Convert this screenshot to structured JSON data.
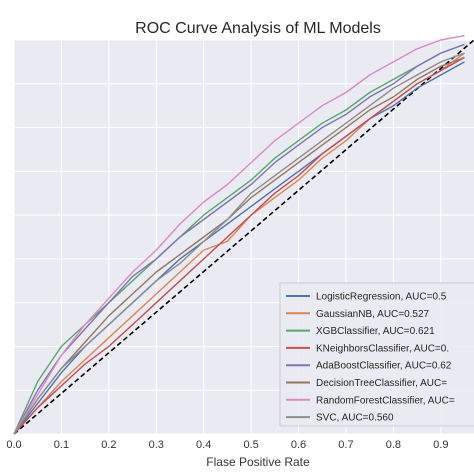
{
  "chart_data": {
    "type": "line",
    "title": "ROC Curve Analysis of ML Models",
    "xlabel": "Flase Positive Rate",
    "ylabel": "",
    "xlim": [
      0.0,
      0.97
    ],
    "ylim": [
      0.0,
      0.9
    ],
    "xticks": [
      "0.0",
      "0.1",
      "0.2",
      "0.3",
      "0.4",
      "0.5",
      "0.6",
      "0.7",
      "0.8",
      "0.9"
    ],
    "xtick_values": [
      0.0,
      0.1,
      0.2,
      0.3,
      0.4,
      0.5,
      0.6,
      0.7,
      0.8,
      0.9
    ],
    "ytick_values": [
      0.0,
      0.1,
      0.2,
      0.3,
      0.4,
      0.5,
      0.6,
      0.7,
      0.8,
      0.9
    ],
    "grid": true,
    "legend_position": "bottom-right",
    "background": "#eaeaf2",
    "chance_line": {
      "x": [
        0.0,
        1.0
      ],
      "y": [
        0.0,
        1.0
      ],
      "color": "#000000",
      "style": "dashed"
    },
    "series": [
      {
        "name": "LogisticRegression, AUC=0.5",
        "color": "#4c72b0",
        "x": [
          0.0,
          0.05,
          0.1,
          0.15,
          0.2,
          0.25,
          0.3,
          0.35,
          0.4,
          0.45,
          0.5,
          0.55,
          0.6,
          0.65,
          0.7,
          0.75,
          0.8,
          0.85,
          0.9,
          0.95
        ],
        "y": [
          0.0,
          0.07,
          0.14,
          0.2,
          0.25,
          0.3,
          0.35,
          0.4,
          0.44,
          0.48,
          0.52,
          0.56,
          0.6,
          0.64,
          0.68,
          0.72,
          0.75,
          0.79,
          0.82,
          0.85
        ]
      },
      {
        "name": "GaussianNB, AUC=0.527",
        "color": "#dd8452",
        "x": [
          0.0,
          0.05,
          0.1,
          0.15,
          0.2,
          0.25,
          0.3,
          0.35,
          0.4,
          0.45,
          0.5,
          0.55,
          0.6,
          0.65,
          0.7,
          0.75,
          0.8,
          0.85,
          0.9,
          0.95
        ],
        "y": [
          0.0,
          0.06,
          0.12,
          0.17,
          0.22,
          0.27,
          0.32,
          0.37,
          0.42,
          0.44,
          0.5,
          0.54,
          0.58,
          0.63,
          0.67,
          0.72,
          0.76,
          0.8,
          0.83,
          0.87
        ]
      },
      {
        "name": "XGBClassifier, AUC=0.621",
        "color": "#55a868",
        "x": [
          0.0,
          0.05,
          0.1,
          0.15,
          0.2,
          0.25,
          0.3,
          0.35,
          0.4,
          0.45,
          0.5,
          0.55,
          0.6,
          0.65,
          0.7,
          0.75,
          0.8,
          0.85,
          0.9,
          0.95
        ],
        "y": [
          0.0,
          0.12,
          0.2,
          0.25,
          0.3,
          0.35,
          0.4,
          0.45,
          0.5,
          0.54,
          0.58,
          0.63,
          0.67,
          0.71,
          0.74,
          0.78,
          0.81,
          0.84,
          0.87,
          0.89
        ]
      },
      {
        "name": "KNeighborsClassifier, AUC=0.",
        "color": "#c44e52",
        "x": [
          0.0,
          0.05,
          0.1,
          0.15,
          0.2,
          0.25,
          0.3,
          0.35,
          0.4,
          0.45,
          0.5,
          0.55,
          0.6,
          0.65,
          0.7,
          0.75,
          0.8,
          0.85,
          0.9,
          0.95
        ],
        "y": [
          0.0,
          0.06,
          0.11,
          0.16,
          0.2,
          0.25,
          0.3,
          0.35,
          0.4,
          0.45,
          0.5,
          0.55,
          0.59,
          0.64,
          0.68,
          0.72,
          0.76,
          0.8,
          0.83,
          0.86
        ]
      },
      {
        "name": "AdaBoostClassifier, AUC=0.62",
        "color": "#8172b3",
        "x": [
          0.0,
          0.05,
          0.1,
          0.15,
          0.2,
          0.25,
          0.3,
          0.35,
          0.4,
          0.45,
          0.5,
          0.55,
          0.6,
          0.65,
          0.7,
          0.75,
          0.8,
          0.85,
          0.9,
          0.95
        ],
        "y": [
          0.0,
          0.1,
          0.18,
          0.24,
          0.3,
          0.36,
          0.4,
          0.45,
          0.49,
          0.53,
          0.57,
          0.62,
          0.66,
          0.7,
          0.73,
          0.77,
          0.8,
          0.84,
          0.87,
          0.89
        ]
      },
      {
        "name": "DecisionTreeClassifier, AUC=",
        "color": "#937860",
        "x": [
          0.0,
          0.05,
          0.1,
          0.15,
          0.2,
          0.25,
          0.3,
          0.35,
          0.4,
          0.45,
          0.5,
          0.55,
          0.6,
          0.65,
          0.7,
          0.75,
          0.8,
          0.85,
          0.9,
          0.95
        ],
        "y": [
          0.0,
          0.08,
          0.15,
          0.21,
          0.27,
          0.32,
          0.37,
          0.41,
          0.45,
          0.49,
          0.54,
          0.58,
          0.62,
          0.66,
          0.7,
          0.74,
          0.77,
          0.81,
          0.84,
          0.86
        ]
      },
      {
        "name": "RandomForestClassifier, AUC=",
        "color": "#da8bc3",
        "x": [
          0.0,
          0.05,
          0.1,
          0.15,
          0.2,
          0.25,
          0.3,
          0.35,
          0.4,
          0.45,
          0.5,
          0.55,
          0.6,
          0.65,
          0.7,
          0.75,
          0.8,
          0.85,
          0.9,
          0.95
        ],
        "y": [
          0.0,
          0.09,
          0.18,
          0.25,
          0.31,
          0.37,
          0.42,
          0.48,
          0.53,
          0.57,
          0.62,
          0.67,
          0.71,
          0.75,
          0.78,
          0.82,
          0.85,
          0.88,
          0.9,
          0.91
        ]
      },
      {
        "name": "SVC, AUC=0.560",
        "color": "#8c8c8c",
        "x": [
          0.0,
          0.05,
          0.1,
          0.15,
          0.2,
          0.25,
          0.3,
          0.35,
          0.4,
          0.45,
          0.5,
          0.55,
          0.6,
          0.65,
          0.7,
          0.75,
          0.8,
          0.85,
          0.9,
          0.95
        ],
        "y": [
          0.0,
          0.08,
          0.15,
          0.2,
          0.25,
          0.3,
          0.35,
          0.39,
          0.44,
          0.49,
          0.55,
          0.59,
          0.63,
          0.67,
          0.71,
          0.75,
          0.79,
          0.82,
          0.85,
          0.87
        ]
      }
    ]
  }
}
